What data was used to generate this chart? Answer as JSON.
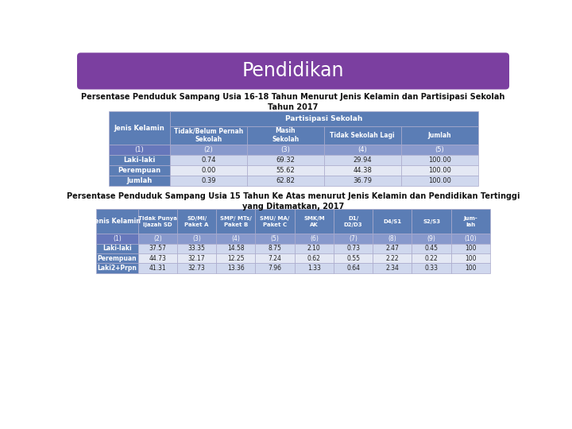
{
  "title": "Pendidikan",
  "title_bg": "#7B3FA0",
  "title_color": "#FFFFFF",
  "bg_color": "#FFFFFF",
  "subtitle1": "Persentase Penduduk Sampang Usia 16-18 Tahun Menurut Jenis Kelamin dan Partisipasi Sekolah\nTahun 2017",
  "subtitle2": "Persentase Penduduk Sampang Usia 15 Tahun Ke Atas menurut Jenis Kelamin dan Pendidikan Tertinggi\nyang Ditamatkan, 2017",
  "header_bg": "#5B7DB5",
  "header_color": "#FFFFFF",
  "col0_bg": "#5B7DB5",
  "col0_color": "#FFFFFF",
  "row_odd_bg": "#8899CC",
  "row_odd_color": "#FFFFFF",
  "row_even_bg": "#C8D0E8",
  "row_even_color": "#222222",
  "num_row_bg": "#6677BB",
  "num_row_color": "#FFFFFF",
  "data_col_odd_bg": "#D8DCF0",
  "data_col_even_bg": "#EAEDF8",
  "table1_col0_header": "Jenis Kelamin",
  "table1_partisipasi": "Partisipasi Sekolah",
  "table1_cols": [
    "Tidak/Belum Pernah\nSekolah",
    "Masih\nSekolah",
    "Tidak Sekolah Lagi",
    "Jumlah"
  ],
  "table1_rows": [
    [
      "(1)",
      "(2)",
      "(3)",
      "(4)",
      "(5)"
    ],
    [
      "Laki-laki",
      "0.74",
      "69.32",
      "29.94",
      "100.00"
    ],
    [
      "Perempuan",
      "0.00",
      "55.62",
      "44.38",
      "100.00"
    ],
    [
      "Jumlah",
      "0.39",
      "62.82",
      "36.79",
      "100.00"
    ]
  ],
  "table2_col0_header": "Jenis Kelamin",
  "table2_cols": [
    "Tidak Punya\nIjazah SD",
    "SD/MI/\nPaket A",
    "SMP/ MTs/\nPaket B",
    "SMU/ MA/\nPaket C",
    "SMK/M\nAK",
    "D1/\nD2/D3",
    "D4/S1",
    "S2/S3",
    "Jum-\nlah"
  ],
  "table2_rows": [
    [
      "(1)",
      "(2)",
      "(3)",
      "(4)",
      "(5)",
      "(6)",
      "(7)",
      "(8)",
      "(9)",
      "(10)"
    ],
    [
      "Laki-laki",
      "37.57",
      "33.35",
      "14.58",
      "8.75",
      "2.10",
      "0.73",
      "2.47",
      "0.45",
      "100"
    ],
    [
      "Perempuan",
      "44.73",
      "32.17",
      "12.25",
      "7.24",
      "0.62",
      "0.55",
      "2.22",
      "0.22",
      "100"
    ],
    [
      "Laki2+Prpn",
      "41.31",
      "32.73",
      "13.36",
      "7.96",
      "1.33",
      "0.64",
      "2.34",
      "0.33",
      "100"
    ]
  ]
}
